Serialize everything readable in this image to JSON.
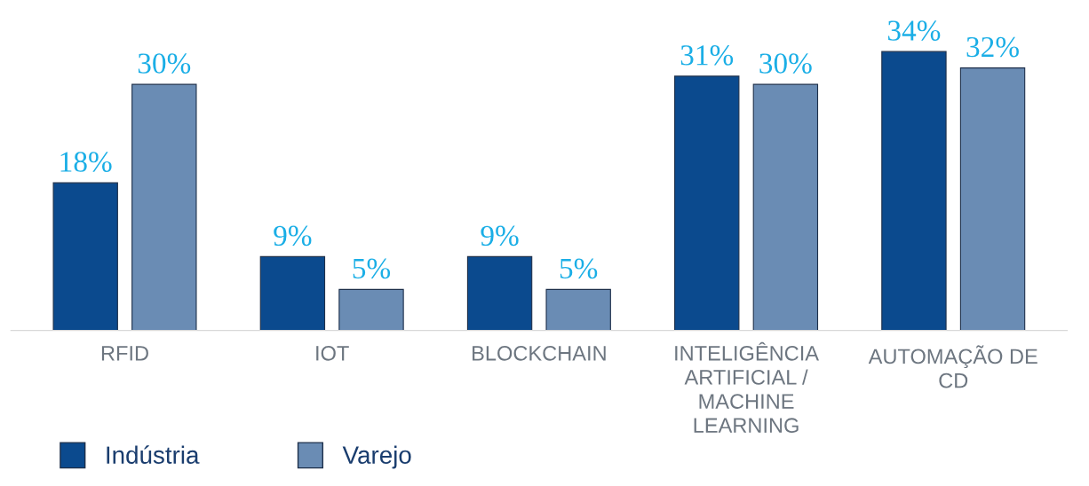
{
  "chart_data": {
    "type": "bar",
    "categories": [
      "RFID",
      "IOT",
      "BLOCKCHAIN",
      "INTELIGÊNCIA\nARTIFICIAL /\nMACHINE\nLEARNING",
      "AUTOMAÇÃO DE\nCD"
    ],
    "series": [
      {
        "name": "Indústria",
        "color": "#0b4a8e",
        "values": [
          18,
          9,
          9,
          31,
          34
        ],
        "value_labels": [
          "18%",
          "9%",
          "9%",
          "31%",
          "34%"
        ]
      },
      {
        "name": "Varejo",
        "color": "#6a8cb4",
        "values": [
          30,
          5,
          5,
          30,
          32
        ],
        "value_labels": [
          "30%",
          "5%",
          "5%",
          "30%",
          "32%"
        ]
      }
    ],
    "legend": "bottom left",
    "grid": false
  }
}
